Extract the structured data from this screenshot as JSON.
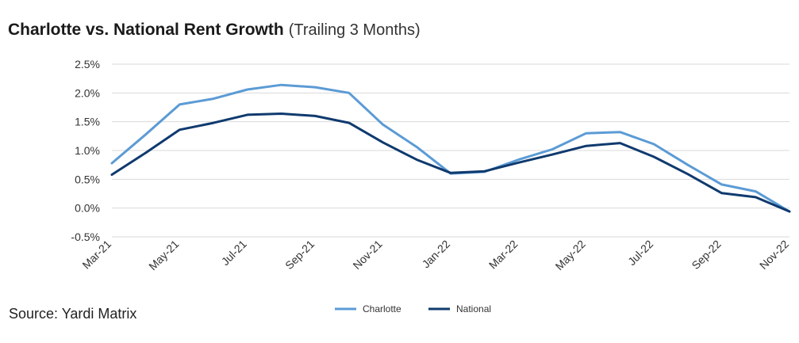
{
  "title": "Charlotte vs. National Rent Growth",
  "subtitle": "(Trailing 3 Months)",
  "source": "Source: Yardi Matrix",
  "colors": {
    "Charlotte": "#5b9bd5",
    "National": "#0f3a6e",
    "grid": "#d9d9d9"
  },
  "chart_data": {
    "type": "line",
    "title": "Charlotte vs. National Rent Growth",
    "subtitle": "(Trailing 3 Months)",
    "x": [
      "Mar-21",
      "Apr-21",
      "May-21",
      "Jun-21",
      "Jul-21",
      "Aug-21",
      "Sep-21",
      "Oct-21",
      "Nov-21",
      "Dec-21",
      "Jan-22",
      "Feb-22",
      "Mar-22",
      "Apr-22",
      "May-22",
      "Jun-22",
      "Jul-22",
      "Aug-22",
      "Sep-22",
      "Oct-22",
      "Nov-22"
    ],
    "tick_labels": [
      "Mar-21",
      "May-21",
      "Jul-21",
      "Sep-21",
      "Nov-21",
      "Jan-22",
      "Mar-22",
      "May-22",
      "Jul-22",
      "Sep-22",
      "Nov-22"
    ],
    "y_ticks": [
      "2.5%",
      "2.0%",
      "1.5%",
      "1.0%",
      "0.5%",
      "0.0%",
      "-0.5%"
    ],
    "y_tick_values": [
      2.5,
      2.0,
      1.5,
      1.0,
      0.5,
      0.0,
      -0.5
    ],
    "ylim": [
      -0.5,
      2.5
    ],
    "grid": true,
    "legend_position": "bottom",
    "series": [
      {
        "name": "Charlotte",
        "values": [
          0.78,
          1.28,
          1.8,
          1.9,
          2.06,
          2.14,
          2.1,
          2.0,
          1.45,
          1.06,
          0.6,
          0.63,
          0.84,
          1.02,
          1.3,
          1.32,
          1.11,
          0.75,
          0.41,
          0.29,
          -0.06
        ]
      },
      {
        "name": "National",
        "values": [
          0.58,
          0.96,
          1.36,
          1.48,
          1.62,
          1.64,
          1.6,
          1.48,
          1.14,
          0.84,
          0.61,
          0.64,
          0.79,
          0.93,
          1.08,
          1.13,
          0.89,
          0.59,
          0.26,
          0.19,
          -0.06
        ]
      }
    ]
  }
}
